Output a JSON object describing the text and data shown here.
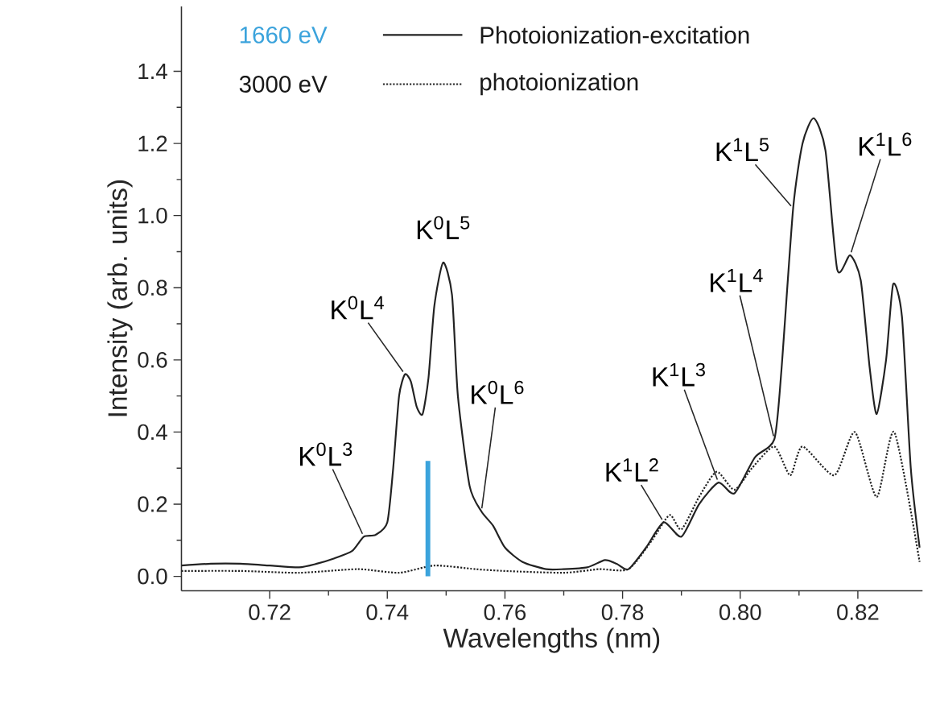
{
  "chart_data": {
    "type": "line",
    "xlabel": "Wavelengths (nm)",
    "ylabel": "Intensity (arb. units)",
    "xlim": [
      0.705,
      0.831
    ],
    "ylim": [
      -0.04,
      1.58
    ],
    "xticks": [
      0.72,
      0.74,
      0.76,
      0.78,
      {
        "value": 0.8,
        "label": "0.80"
      },
      0.82
    ],
    "yticks": [
      {
        "value": 0,
        "label": "0.0"
      },
      0.2,
      0.4,
      0.6,
      0.8,
      {
        "value": 1,
        "label": "1.0"
      },
      1.2,
      1.4
    ],
    "legend": "top",
    "series": [
      {
        "name": "Photoionization-excitation",
        "color": "#222222",
        "line_style": "solid",
        "x": [
          0.705,
          0.71,
          0.715,
          0.72,
          0.725,
          0.728,
          0.731,
          0.734,
          0.736,
          0.738,
          0.74,
          0.741,
          0.742,
          0.743,
          0.744,
          0.745,
          0.746,
          0.747,
          0.748,
          0.7495,
          0.751,
          0.752,
          0.754,
          0.756,
          0.758,
          0.76,
          0.763,
          0.767,
          0.77,
          0.774,
          0.777,
          0.779,
          0.781,
          0.784,
          0.787,
          0.79,
          0.793,
          0.7963,
          0.799,
          0.8025,
          0.8058,
          0.807,
          0.809,
          0.8106,
          0.8125,
          0.8145,
          0.8165,
          0.8187,
          0.8205,
          0.822,
          0.8232,
          0.8248,
          0.826,
          0.8275,
          0.829,
          0.8305
        ],
        "values": [
          0.03,
          0.035,
          0.035,
          0.03,
          0.025,
          0.035,
          0.05,
          0.07,
          0.11,
          0.115,
          0.15,
          0.3,
          0.5,
          0.56,
          0.54,
          0.47,
          0.45,
          0.55,
          0.75,
          0.87,
          0.78,
          0.5,
          0.25,
          0.18,
          0.14,
          0.08,
          0.04,
          0.02,
          0.02,
          0.025,
          0.045,
          0.035,
          0.02,
          0.08,
          0.15,
          0.11,
          0.2,
          0.26,
          0.23,
          0.33,
          0.38,
          0.57,
          1.02,
          1.2,
          1.27,
          1.18,
          0.85,
          0.89,
          0.82,
          0.58,
          0.45,
          0.6,
          0.81,
          0.72,
          0.3,
          0.08
        ]
      },
      {
        "name": "photoionization",
        "color": "#222222",
        "line_style": "dotted",
        "x": [
          0.705,
          0.715,
          0.725,
          0.735,
          0.742,
          0.748,
          0.755,
          0.76,
          0.77,
          0.776,
          0.781,
          0.785,
          0.788,
          0.79,
          0.793,
          0.796,
          0.799,
          0.802,
          0.8058,
          0.8085,
          0.8106,
          0.816,
          0.8195,
          0.8232,
          0.8262,
          0.8305
        ],
        "values": [
          0.015,
          0.015,
          0.01,
          0.02,
          0.01,
          0.03,
          0.02,
          0.015,
          0.01,
          0.02,
          0.02,
          0.1,
          0.17,
          0.13,
          0.22,
          0.29,
          0.24,
          0.3,
          0.36,
          0.28,
          0.36,
          0.28,
          0.4,
          0.22,
          0.4,
          0.04
        ]
      },
      {
        "name": "1660 eV",
        "color": "#3ba3dc",
        "type": "bar",
        "x": [
          0.7469
        ],
        "values": [
          0.32
        ]
      }
    ],
    "annotations": [
      "3000 eV",
      {
        "text": "K$^{0}$L$^{3}$",
        "x": 0.736,
        "y": 0.11
      },
      {
        "text": "K$^{0}$L$^{4}$",
        "x": 0.743,
        "y": 0.56
      },
      {
        "text": "K$^{0}$L$^{5}$",
        "x": 0.7495,
        "y": 0.87
      },
      {
        "text": "K$^{0}$L$^{6}$",
        "x": 0.756,
        "y": 0.18
      },
      {
        "text": "K$^{1}$L$^{2}$",
        "x": 0.787,
        "y": 0.15
      },
      {
        "text": "K$^{1}$L$^{3}$",
        "x": 0.7963,
        "y": 0.26
      },
      {
        "text": "K$^{1}$L$^{4}$",
        "x": 0.8058,
        "y": 0.38
      },
      {
        "text": "K$^{1}$L$^{5}$",
        "x": 0.809,
        "y": 1.02
      },
      {
        "text": "K$^{1}$L$^{6}$",
        "x": 0.8187,
        "y": 0.89
      }
    ]
  }
}
